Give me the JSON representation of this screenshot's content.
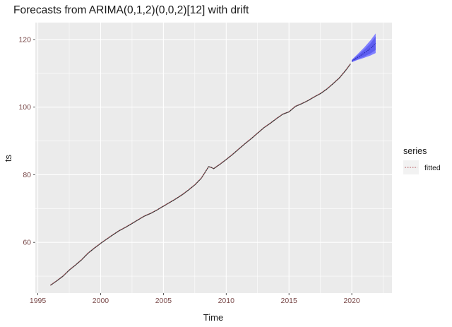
{
  "chart_data": {
    "type": "line",
    "title": "Forecasts from ARIMA(0,1,2)(0,0,2)[12] with drift",
    "xlabel": "Time",
    "ylabel": "ts",
    "xlim": [
      1994.8,
      2023.2
    ],
    "ylim": [
      45,
      125
    ],
    "x_ticks": [
      1995,
      2000,
      2005,
      2010,
      2015,
      2020
    ],
    "y_ticks": [
      60,
      80,
      100,
      120
    ],
    "grid": true,
    "legend": {
      "title": "series",
      "position": "right",
      "entries": [
        "fitted"
      ]
    },
    "series": [
      {
        "name": "ts",
        "color": "#333333",
        "x": [
          1996.0,
          1996.5,
          1997.0,
          1997.5,
          1998.0,
          1998.5,
          1999.0,
          1999.5,
          2000.0,
          2000.5,
          2001.0,
          2001.5,
          2002.0,
          2002.5,
          2003.0,
          2003.5,
          2004.0,
          2004.5,
          2005.0,
          2005.5,
          2006.0,
          2006.5,
          2007.0,
          2007.5,
          2008.0,
          2008.3,
          2008.6,
          2008.8,
          2009.0,
          2009.5,
          2010.0,
          2010.5,
          2011.0,
          2011.5,
          2012.0,
          2012.5,
          2013.0,
          2013.5,
          2014.0,
          2014.5,
          2015.0,
          2015.5,
          2016.0,
          2016.5,
          2017.0,
          2017.5,
          2018.0,
          2018.5,
          2019.0,
          2019.5,
          2019.9
        ],
        "y": [
          47.3,
          48.6,
          50.0,
          51.8,
          53.3,
          54.9,
          56.8,
          58.3,
          59.7,
          61.0,
          62.3,
          63.5,
          64.5,
          65.6,
          66.7,
          67.8,
          68.6,
          69.6,
          70.7,
          71.8,
          72.9,
          74.1,
          75.5,
          77.0,
          78.9,
          80.6,
          82.4,
          82.2,
          81.8,
          83.1,
          84.5,
          86.0,
          87.6,
          89.2,
          90.7,
          92.3,
          93.9,
          95.2,
          96.6,
          97.9,
          98.6,
          100.2,
          101.0,
          101.9,
          103.0,
          104.0,
          105.3,
          106.9,
          108.6,
          110.8,
          112.8
        ]
      },
      {
        "name": "fitted",
        "color": "#b5636b",
        "x": [
          1996.0,
          1996.5,
          1997.0,
          1997.5,
          1998.0,
          1998.5,
          1999.0,
          1999.5,
          2000.0,
          2000.5,
          2001.0,
          2001.5,
          2002.0,
          2002.5,
          2003.0,
          2003.5,
          2004.0,
          2004.5,
          2005.0,
          2005.5,
          2006.0,
          2006.5,
          2007.0,
          2007.5,
          2008.0,
          2008.3,
          2008.6,
          2008.8,
          2009.0,
          2009.5,
          2010.0,
          2010.5,
          2011.0,
          2011.5,
          2012.0,
          2012.5,
          2013.0,
          2013.5,
          2014.0,
          2014.5,
          2015.0,
          2015.5,
          2016.0,
          2016.5,
          2017.0,
          2017.5,
          2018.0,
          2018.5,
          2019.0,
          2019.5,
          2019.9
        ],
        "y": [
          47.4,
          48.7,
          50.1,
          51.9,
          53.4,
          55.0,
          56.9,
          58.4,
          59.8,
          61.1,
          62.4,
          63.6,
          64.6,
          65.7,
          66.8,
          67.9,
          68.7,
          69.7,
          70.8,
          71.9,
          73.0,
          74.2,
          75.6,
          77.1,
          79.0,
          80.7,
          82.3,
          82.1,
          81.9,
          83.2,
          84.6,
          86.1,
          87.7,
          89.3,
          90.8,
          92.4,
          94.0,
          95.3,
          96.7,
          98.0,
          98.7,
          100.3,
          101.1,
          102.0,
          103.1,
          104.1,
          105.4,
          107.0,
          108.7,
          110.9,
          112.9
        ]
      }
    ],
    "forecast": {
      "x": [
        2020.0,
        2020.5,
        2021.0,
        2021.5,
        2021.9
      ],
      "mean": [
        113.6,
        114.8,
        116.0,
        117.4,
        118.9
      ],
      "lower_80": [
        113.4,
        114.2,
        115.0,
        115.9,
        116.9
      ],
      "upper_80": [
        113.9,
        115.4,
        117.0,
        118.9,
        120.9
      ],
      "lower_95": [
        113.3,
        114.0,
        114.6,
        115.3,
        116.0
      ],
      "upper_95": [
        114.0,
        115.8,
        117.7,
        119.8,
        121.8
      ]
    },
    "colors": {
      "panel": "#ebebeb",
      "gridline": "#ffffff",
      "band_95": "#7f7fff",
      "band_80": "#5e5ef0",
      "forecast_mean": "#1e1e9e"
    }
  }
}
